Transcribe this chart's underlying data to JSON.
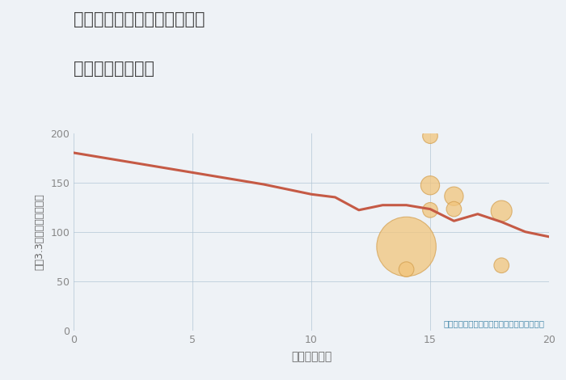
{
  "title_line1": "兵庫県神戸市中央区中島通の",
  "title_line2": "駅距離別土地価格",
  "xlabel": "駅距離（分）",
  "ylabel": "坪（3.3㎡）単価（万円）",
  "annotation": "円の大きさは、取引のあった物件面積を示す",
  "line_x": [
    0,
    1,
    2,
    3,
    4,
    5,
    6,
    7,
    8,
    9,
    10,
    11,
    12,
    13,
    14,
    15,
    16,
    17,
    18,
    19,
    20
  ],
  "line_y": [
    180,
    176,
    172,
    168,
    164,
    160,
    156,
    152,
    148,
    143,
    138,
    135,
    122,
    127,
    127,
    123,
    111,
    118,
    110,
    100,
    95
  ],
  "scatter_x": [
    14,
    14,
    15,
    15,
    15,
    16,
    16,
    18,
    18
  ],
  "scatter_y": [
    85,
    62,
    197,
    147,
    122,
    136,
    123,
    121,
    66
  ],
  "scatter_sizes": [
    2800,
    180,
    180,
    280,
    180,
    280,
    180,
    350,
    180
  ],
  "scatter_color": "#F2C57C",
  "scatter_edgecolor": "#D4A050",
  "scatter_alpha": 0.75,
  "line_color": "#C55A45",
  "line_width": 2.2,
  "background_color": "#EEF2F6",
  "plot_bg_color": "#EEF2F6",
  "grid_color": "#B0C4D4",
  "title_color": "#444444",
  "axis_label_color": "#666666",
  "tick_color": "#888888",
  "annotation_color": "#4488AA",
  "xlim": [
    0,
    20
  ],
  "ylim": [
    0,
    200
  ],
  "xticks": [
    0,
    5,
    10,
    15,
    20
  ],
  "yticks": [
    0,
    50,
    100,
    150,
    200
  ]
}
